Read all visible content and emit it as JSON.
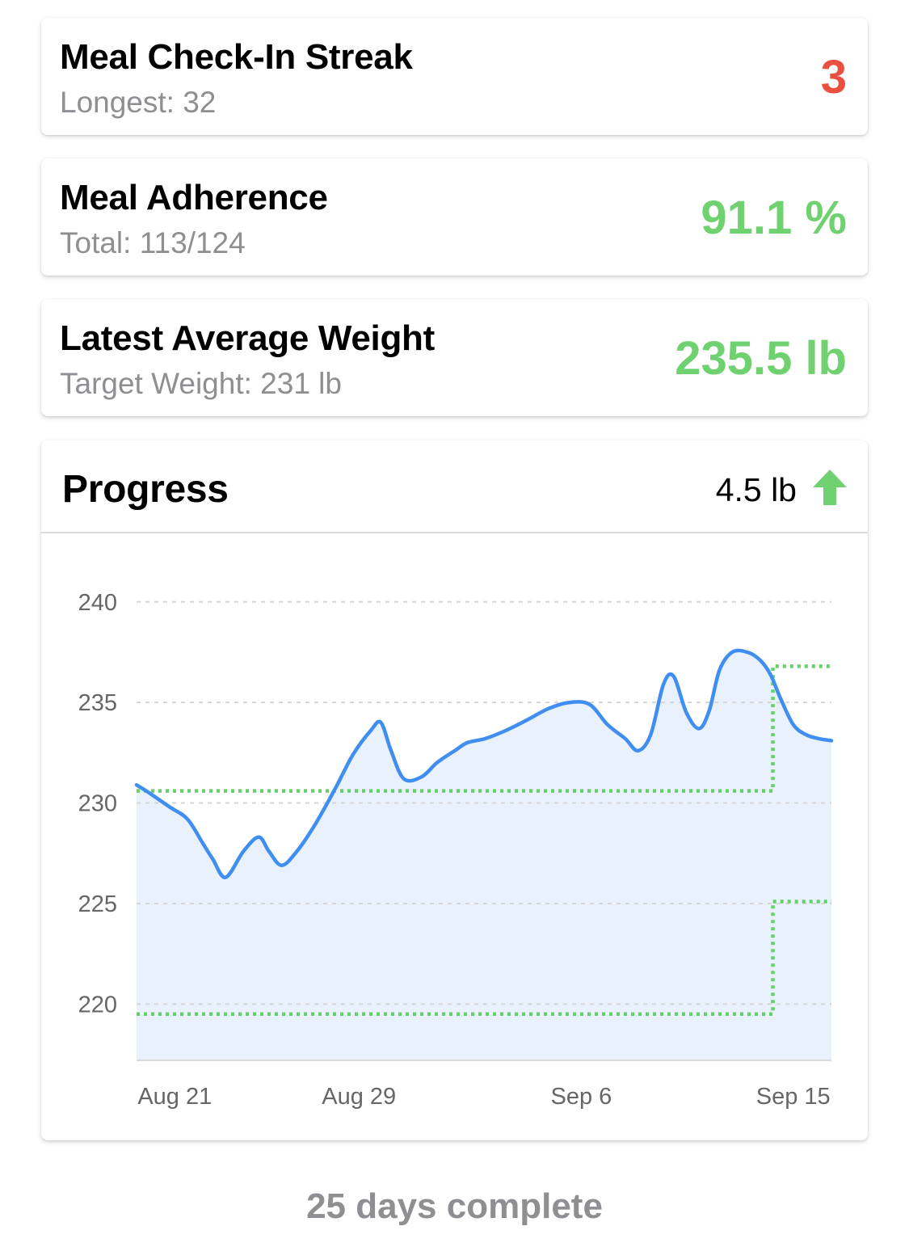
{
  "colors": {
    "streak": "#e9503f",
    "positive": "#6fd16f",
    "line": "#3f8ef0",
    "fill": "#e9f1fc",
    "target": "#66d06a",
    "grid": "#d6d6d6",
    "muted": "#8e8e93"
  },
  "cards": {
    "streak": {
      "title": "Meal Check-In Streak",
      "subtitle": "Longest: 32",
      "value": "3"
    },
    "adherence": {
      "title": "Meal Adherence",
      "subtitle": "Total: 113/124",
      "value": "91.1 %"
    },
    "weight": {
      "title": "Latest Average Weight",
      "subtitle": "Target Weight: 231 lb",
      "value": "235.5 lb"
    }
  },
  "progress": {
    "title": "Progress",
    "change": "4.5 lb",
    "change_icon": "arrow-up-icon"
  },
  "chart_data": {
    "type": "line",
    "title": "",
    "xlabel": "",
    "ylabel": "",
    "x_ticks": [
      "Aug 21",
      "Aug 29",
      "Sep 6",
      "Sep 15"
    ],
    "y_ticks": [
      240,
      235,
      230,
      225,
      220
    ],
    "ylim": [
      217.2,
      242
    ],
    "grid": true,
    "area_fill": true,
    "series": [
      {
        "values": [
          [
            0,
            230.9
          ],
          [
            0.5,
            230.5
          ],
          [
            1.3,
            229.8
          ],
          [
            2,
            229.2
          ],
          [
            2.6,
            228.0
          ],
          [
            3,
            227.2
          ],
          [
            3.5,
            226.3
          ],
          [
            4.2,
            227.6
          ],
          [
            4.8,
            228.3
          ],
          [
            5.2,
            227.6
          ],
          [
            5.7,
            226.9
          ],
          [
            6.3,
            227.6
          ],
          [
            7,
            228.9
          ],
          [
            7.8,
            230.7
          ],
          [
            8.5,
            232.4
          ],
          [
            9.2,
            233.6
          ],
          [
            9.6,
            234.0
          ],
          [
            10,
            232.6
          ],
          [
            10.5,
            231.2
          ],
          [
            11.2,
            231.3
          ],
          [
            11.8,
            232.0
          ],
          [
            12.5,
            232.6
          ],
          [
            13,
            233.0
          ],
          [
            13.7,
            233.2
          ],
          [
            14.5,
            233.6
          ],
          [
            15.3,
            234.1
          ],
          [
            16.2,
            234.7
          ],
          [
            17,
            235.0
          ],
          [
            17.8,
            234.9
          ],
          [
            18.5,
            233.9
          ],
          [
            19.2,
            233.2
          ],
          [
            19.7,
            232.6
          ],
          [
            20.2,
            233.4
          ],
          [
            20.7,
            235.9
          ],
          [
            21.1,
            236.3
          ],
          [
            21.6,
            234.5
          ],
          [
            22.1,
            233.7
          ],
          [
            22.5,
            234.6
          ],
          [
            22.9,
            236.6
          ],
          [
            23.4,
            237.5
          ],
          [
            24,
            237.5
          ],
          [
            24.5,
            237.1
          ],
          [
            24.9,
            236.4
          ],
          [
            25.3,
            235.2
          ],
          [
            25.8,
            233.9
          ],
          [
            26.3,
            233.4
          ],
          [
            26.8,
            233.2
          ],
          [
            27.3,
            233.1
          ]
        ]
      }
    ],
    "target_band": {
      "upper": [
        [
          0,
          230.6
        ],
        [
          25.0,
          230.6
        ],
        [
          25.0,
          236.8
        ],
        [
          27.3,
          236.8
        ]
      ],
      "lower": [
        [
          0,
          219.5
        ],
        [
          25.0,
          219.5
        ],
        [
          25.0,
          225.1
        ],
        [
          27.3,
          225.1
        ]
      ]
    },
    "x_range": [
      0,
      27.3
    ]
  },
  "footer": {
    "text": "25 days complete"
  }
}
